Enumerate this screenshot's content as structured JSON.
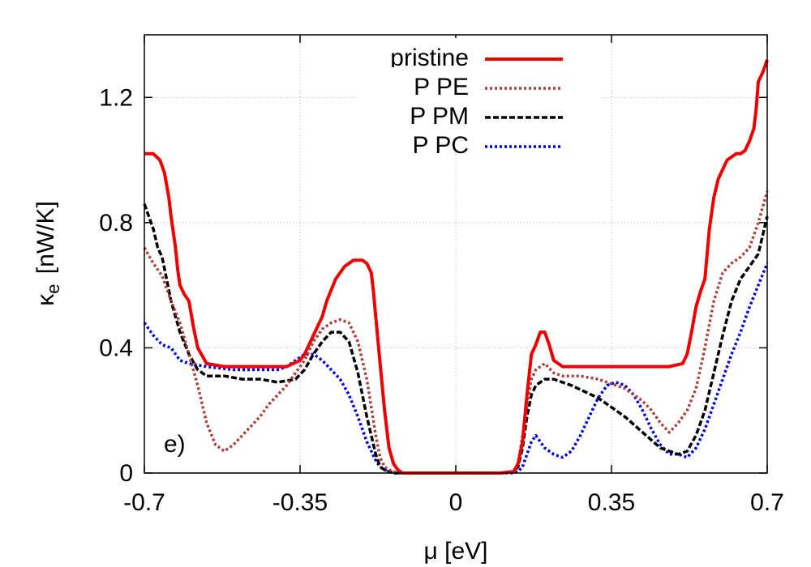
{
  "chart_data": {
    "type": "line",
    "xlabel": "μ [eV]",
    "ylabel_main": "κ",
    "ylabel_sub": "e",
    "ylabel_unit": "[nW/K]",
    "xlim": [
      -0.7,
      0.7
    ],
    "ylim": [
      0,
      1.4
    ],
    "xticks": [
      -0.7,
      -0.35,
      0,
      0.35,
      0.7
    ],
    "xtick_labels": [
      "-0.7",
      "-0.35",
      "0",
      "0.35",
      "0.7"
    ],
    "yticks": [
      0,
      0.4,
      0.8,
      1.2
    ],
    "ytick_labels": [
      "0",
      "0.4",
      "0.8",
      "1.2"
    ],
    "grid": true,
    "legend_position": "top-right",
    "annotation": "e)",
    "series": [
      {
        "name": "pristine",
        "color": "#ee0000",
        "style": "solid",
        "x": [
          -0.7,
          -0.68,
          -0.665,
          -0.655,
          -0.645,
          -0.64,
          -0.63,
          -0.625,
          -0.62,
          -0.61,
          -0.6,
          -0.59,
          -0.58,
          -0.56,
          -0.52,
          -0.45,
          -0.38,
          -0.35,
          -0.34,
          -0.32,
          -0.3,
          -0.29,
          -0.27,
          -0.25,
          -0.23,
          -0.21,
          -0.2,
          -0.19,
          -0.185,
          -0.18,
          -0.17,
          -0.16,
          -0.15,
          -0.14,
          -0.13,
          -0.12,
          -0.1,
          0,
          0.1,
          0.13,
          0.14,
          0.15,
          0.16,
          0.17,
          0.18,
          0.19,
          0.2,
          0.21,
          0.22,
          0.24,
          0.3,
          0.4,
          0.48,
          0.51,
          0.52,
          0.53,
          0.54,
          0.55,
          0.56,
          0.57,
          0.58,
          0.59,
          0.6,
          0.61,
          0.62,
          0.63,
          0.64,
          0.65,
          0.66,
          0.67,
          0.675,
          0.68,
          0.69,
          0.7
        ],
        "y": [
          1.02,
          1.02,
          1.0,
          0.96,
          0.88,
          0.82,
          0.72,
          0.65,
          0.6,
          0.57,
          0.55,
          0.47,
          0.4,
          0.35,
          0.34,
          0.34,
          0.34,
          0.36,
          0.38,
          0.44,
          0.5,
          0.55,
          0.62,
          0.66,
          0.68,
          0.68,
          0.67,
          0.64,
          0.58,
          0.5,
          0.35,
          0.2,
          0.08,
          0.03,
          0.01,
          0.0,
          0.0,
          0.0,
          0.0,
          0.005,
          0.03,
          0.1,
          0.25,
          0.38,
          0.41,
          0.45,
          0.45,
          0.41,
          0.36,
          0.34,
          0.34,
          0.34,
          0.34,
          0.35,
          0.38,
          0.45,
          0.53,
          0.58,
          0.62,
          0.78,
          0.88,
          0.94,
          0.97,
          1.0,
          1.01,
          1.02,
          1.02,
          1.03,
          1.06,
          1.1,
          1.16,
          1.25,
          1.28,
          1.32
        ]
      },
      {
        "name": "P PE",
        "color": "#aa4040",
        "style": "dotted",
        "x": [
          -0.7,
          -0.68,
          -0.66,
          -0.64,
          -0.62,
          -0.6,
          -0.58,
          -0.56,
          -0.54,
          -0.52,
          -0.5,
          -0.48,
          -0.46,
          -0.44,
          -0.42,
          -0.4,
          -0.38,
          -0.36,
          -0.34,
          -0.32,
          -0.3,
          -0.28,
          -0.26,
          -0.24,
          -0.22,
          -0.2,
          -0.18,
          -0.17,
          -0.16,
          -0.15,
          -0.14,
          -0.13,
          -0.12,
          -0.1,
          0,
          0.1,
          0.13,
          0.14,
          0.15,
          0.16,
          0.17,
          0.18,
          0.2,
          0.22,
          0.24,
          0.28,
          0.32,
          0.36,
          0.38,
          0.4,
          0.42,
          0.44,
          0.46,
          0.48,
          0.5,
          0.52,
          0.54,
          0.56,
          0.58,
          0.6,
          0.62,
          0.64,
          0.66,
          0.68,
          0.7
        ],
        "y": [
          0.72,
          0.67,
          0.63,
          0.55,
          0.48,
          0.38,
          0.28,
          0.16,
          0.09,
          0.07,
          0.09,
          0.12,
          0.15,
          0.18,
          0.22,
          0.25,
          0.28,
          0.32,
          0.36,
          0.42,
          0.46,
          0.48,
          0.49,
          0.48,
          0.42,
          0.3,
          0.12,
          0.05,
          0.02,
          0.01,
          0.005,
          0.0,
          0.0,
          0.0,
          0.0,
          0.0,
          0.005,
          0.03,
          0.12,
          0.22,
          0.3,
          0.33,
          0.35,
          0.32,
          0.31,
          0.31,
          0.3,
          0.28,
          0.27,
          0.25,
          0.23,
          0.2,
          0.16,
          0.13,
          0.16,
          0.2,
          0.27,
          0.4,
          0.55,
          0.64,
          0.67,
          0.69,
          0.72,
          0.8,
          0.9
        ]
      },
      {
        "name": "P PM",
        "color": "#000000",
        "style": "dashed",
        "x": [
          -0.7,
          -0.68,
          -0.67,
          -0.66,
          -0.64,
          -0.62,
          -0.6,
          -0.58,
          -0.56,
          -0.52,
          -0.48,
          -0.44,
          -0.4,
          -0.36,
          -0.34,
          -0.32,
          -0.3,
          -0.28,
          -0.26,
          -0.24,
          -0.22,
          -0.2,
          -0.18,
          -0.17,
          -0.16,
          -0.15,
          -0.14,
          -0.13,
          -0.12,
          -0.1,
          0,
          0.1,
          0.13,
          0.14,
          0.15,
          0.16,
          0.17,
          0.18,
          0.2,
          0.22,
          0.26,
          0.32,
          0.38,
          0.42,
          0.46,
          0.5,
          0.52,
          0.54,
          0.56,
          0.58,
          0.6,
          0.62,
          0.64,
          0.66,
          0.68,
          0.7
        ],
        "y": [
          0.86,
          0.78,
          0.72,
          0.69,
          0.55,
          0.45,
          0.38,
          0.33,
          0.31,
          0.31,
          0.3,
          0.3,
          0.29,
          0.3,
          0.33,
          0.38,
          0.42,
          0.45,
          0.45,
          0.42,
          0.32,
          0.18,
          0.06,
          0.02,
          0.01,
          0.005,
          0.0,
          0.0,
          0.0,
          0.0,
          0.0,
          0.0,
          0.005,
          0.02,
          0.08,
          0.18,
          0.25,
          0.28,
          0.3,
          0.3,
          0.28,
          0.24,
          0.18,
          0.13,
          0.08,
          0.06,
          0.07,
          0.12,
          0.2,
          0.32,
          0.44,
          0.55,
          0.62,
          0.66,
          0.7,
          0.82
        ]
      },
      {
        "name": "P PC",
        "color": "#0000dd",
        "style": "dotted",
        "x": [
          -0.7,
          -0.68,
          -0.66,
          -0.64,
          -0.62,
          -0.6,
          -0.56,
          -0.5,
          -0.44,
          -0.4,
          -0.38,
          -0.36,
          -0.34,
          -0.32,
          -0.3,
          -0.28,
          -0.26,
          -0.24,
          -0.22,
          -0.2,
          -0.18,
          -0.17,
          -0.16,
          -0.15,
          -0.14,
          -0.13,
          -0.1,
          0,
          0.1,
          0.13,
          0.14,
          0.15,
          0.16,
          0.17,
          0.18,
          0.19,
          0.2,
          0.22,
          0.24,
          0.26,
          0.28,
          0.3,
          0.32,
          0.34,
          0.36,
          0.38,
          0.4,
          0.42,
          0.44,
          0.46,
          0.48,
          0.5,
          0.52,
          0.54,
          0.56,
          0.58,
          0.6,
          0.62,
          0.64,
          0.66,
          0.68,
          0.7
        ],
        "y": [
          0.48,
          0.44,
          0.41,
          0.4,
          0.36,
          0.35,
          0.34,
          0.33,
          0.33,
          0.33,
          0.34,
          0.36,
          0.38,
          0.38,
          0.36,
          0.33,
          0.3,
          0.25,
          0.18,
          0.1,
          0.04,
          0.02,
          0.01,
          0.005,
          0.0,
          0.0,
          0.0,
          0.0,
          0.0,
          0.0,
          0.005,
          0.02,
          0.06,
          0.1,
          0.12,
          0.1,
          0.08,
          0.06,
          0.05,
          0.07,
          0.12,
          0.18,
          0.24,
          0.28,
          0.29,
          0.28,
          0.25,
          0.2,
          0.14,
          0.09,
          0.06,
          0.06,
          0.05,
          0.08,
          0.14,
          0.22,
          0.3,
          0.38,
          0.45,
          0.53,
          0.6,
          0.67
        ]
      }
    ]
  }
}
